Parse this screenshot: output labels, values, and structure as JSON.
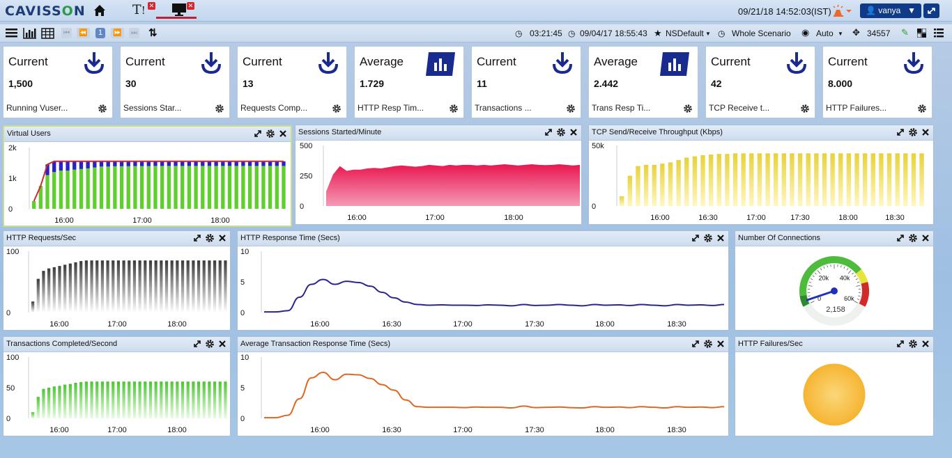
{
  "app": {
    "logo_a": "CAVISS",
    "logo_o": "O",
    "logo_b": "N",
    "tab_text": "T"
  },
  "header": {
    "datetime": "09/21/18 14:52:03(IST)",
    "user": "vanya"
  },
  "toolbar": {
    "page": "1",
    "elapsed": "03:21:45",
    "start": "09/04/17 18:55:43",
    "profile": "NSDefault",
    "scenario": "Whole Scenario",
    "refresh": "Auto",
    "test_run": "34557"
  },
  "cards": [
    {
      "title": "Current",
      "value": "1,500",
      "label": "Running Vuser...",
      "icon": "download-icon"
    },
    {
      "title": "Current",
      "value": "30",
      "label": "Sessions Star...",
      "icon": "download-icon"
    },
    {
      "title": "Current",
      "value": "13",
      "label": "Requests Comp...",
      "icon": "download-icon"
    },
    {
      "title": "Average",
      "value": "1.729",
      "label": "HTTP Resp Tim...",
      "icon": "bar-chart-icon"
    },
    {
      "title": "Current",
      "value": "11",
      "label": "Transactions ...",
      "icon": "download-icon"
    },
    {
      "title": "Average",
      "value": "2.442",
      "label": "Trans Resp Ti...",
      "icon": "bar-chart-icon"
    },
    {
      "title": "Current",
      "value": "42",
      "label": "TCP Receive t...",
      "icon": "download-icon"
    },
    {
      "title": "Current",
      "value": "8.000",
      "label": "HTTP Failures...",
      "icon": "download-icon"
    }
  ],
  "panels": {
    "vusers": {
      "title": "Virtual Users"
    },
    "sessions": {
      "title": "Sessions Started/Minute"
    },
    "tcp": {
      "title": "TCP Send/Receive Throughput (Kbps)"
    },
    "httpreq": {
      "title": "HTTP Requests/Sec"
    },
    "httpresp": {
      "title": "HTTP Response Time (Secs)"
    },
    "conn": {
      "title": "Number Of Connections"
    },
    "trans": {
      "title": "Transactions Completed/Second"
    },
    "avgtrans": {
      "title": "Average Transaction Response Time (Secs)"
    },
    "failures": {
      "title": "HTTP Failures/Sec"
    }
  },
  "chart_data": [
    {
      "id": "vusers",
      "type": "bar",
      "yticks": [
        "2k",
        "1k",
        "0"
      ],
      "xticks": [
        "16:00",
        "17:00",
        "18:00"
      ],
      "ylim": [
        0,
        2000
      ],
      "series": [
        {
          "name": "green",
          "values": [
            250,
            750,
            1100,
            1200,
            1250,
            1250,
            1280,
            1300,
            1320,
            1350,
            1380,
            1380,
            1390,
            1390,
            1390,
            1395,
            1395,
            1395,
            1400,
            1400,
            1400,
            1400,
            1400,
            1400,
            1400,
            1400,
            1400,
            1400,
            1400,
            1400,
            1400,
            1400,
            1400,
            1400,
            1400,
            1400,
            1400,
            1400
          ]
        },
        {
          "name": "blue",
          "values": [
            0,
            0,
            350,
            350,
            300,
            300,
            270,
            250,
            230,
            200,
            170,
            170,
            160,
            160,
            160,
            155,
            155,
            155,
            150,
            150,
            150,
            150,
            150,
            150,
            150,
            150,
            150,
            150,
            150,
            150,
            150,
            150,
            150,
            150,
            150,
            150,
            150,
            150
          ]
        }
      ],
      "colors": {
        "green": "#5fcf2e",
        "blue": "#2a22c9",
        "line": "#d42535"
      }
    },
    {
      "id": "sessions",
      "type": "area",
      "yticks": [
        "500",
        "250",
        "0"
      ],
      "xticks": [
        "16:00",
        "17:00",
        "18:00"
      ],
      "ylim": [
        0,
        500
      ],
      "values": [
        120,
        260,
        330,
        290,
        300,
        300,
        310,
        315,
        310,
        320,
        330,
        335,
        330,
        325,
        330,
        340,
        335,
        330,
        340,
        335,
        340,
        340,
        335,
        340,
        335,
        340,
        345,
        340,
        335,
        340,
        345,
        340,
        338,
        340,
        345,
        340,
        335,
        340
      ],
      "color": "#e8174f"
    },
    {
      "id": "tcp",
      "type": "bar",
      "yticks": [
        "50k",
        "0"
      ],
      "xticks": [
        "16:00",
        "16:30",
        "17:00",
        "17:30",
        "18:00",
        "18:30"
      ],
      "ylim": [
        0,
        50000
      ],
      "values": [
        8000,
        25000,
        33000,
        34000,
        34000,
        35000,
        36000,
        38000,
        40000,
        41000,
        42000,
        42500,
        43000,
        43000,
        43500,
        43500,
        43500,
        43500,
        43500,
        43500,
        43500,
        43500,
        43500,
        43500,
        43500,
        43500,
        43500,
        43500,
        43500,
        43500,
        43500,
        43500,
        43500,
        43500,
        43500,
        43500,
        43500,
        43500
      ],
      "color": "#e8d23a"
    },
    {
      "id": "httpreq",
      "type": "bar",
      "yticks": [
        "100",
        "0"
      ],
      "xticks": [
        "16:00",
        "17:00",
        "18:00"
      ],
      "ylim": [
        0,
        100
      ],
      "values": [
        18,
        55,
        68,
        72,
        74,
        76,
        78,
        80,
        82,
        84,
        85,
        85,
        85,
        85,
        85,
        85,
        85,
        85,
        85,
        85,
        85,
        85,
        85,
        85,
        85,
        85,
        85,
        85,
        85,
        85,
        85,
        85,
        85,
        85,
        85,
        85,
        85
      ],
      "color": "#3a3a3a"
    },
    {
      "id": "httpresp",
      "type": "line",
      "yticks": [
        "10",
        "5",
        "0"
      ],
      "xticks": [
        "16:00",
        "16:30",
        "17:00",
        "17:30",
        "18:00",
        "18:30"
      ],
      "ylim": [
        0,
        10
      ],
      "values": [
        0.1,
        0.1,
        0.3,
        2.5,
        4.6,
        5.4,
        4.6,
        5.1,
        4.9,
        4.3,
        3.3,
        2.4,
        1.7,
        1.3,
        1.2,
        1.25,
        1.2,
        1.2,
        1.15,
        1.25,
        1.2,
        1.1,
        1.3,
        1.15,
        1.2,
        1.3,
        1.2,
        1.1,
        1.3,
        1.2,
        1.25,
        1.15,
        1.3,
        1.2,
        1.1,
        1.3,
        1.2,
        1.25,
        1.15,
        1.3
      ],
      "color": "#2a2490"
    },
    {
      "id": "conn",
      "type": "gauge",
      "value": 2158,
      "value_label": "2,158",
      "max": 60000,
      "ticks": [
        "0",
        "20k",
        "40k",
        "60k"
      ]
    },
    {
      "id": "trans",
      "type": "bar",
      "yticks": [
        "100",
        "50",
        "0"
      ],
      "xticks": [
        "16:00",
        "17:00",
        "18:00"
      ],
      "ylim": [
        0,
        100
      ],
      "values": [
        10,
        35,
        48,
        50,
        52,
        53,
        55,
        56,
        58,
        59,
        60,
        60,
        60,
        60,
        60,
        60,
        60,
        60,
        60,
        60,
        60,
        60,
        60,
        60,
        60,
        60,
        60,
        60,
        60,
        60,
        60,
        60,
        60,
        60,
        60,
        60,
        60
      ],
      "color": "#4cc632"
    },
    {
      "id": "avgtrans",
      "type": "line",
      "yticks": [
        "10",
        "5",
        "0"
      ],
      "xticks": [
        "16:00",
        "16:30",
        "17:00",
        "17:30",
        "18:00",
        "18:30"
      ],
      "ylim": [
        0,
        10
      ],
      "values": [
        0.1,
        0.1,
        0.5,
        3.2,
        6.6,
        7.5,
        6.3,
        7.2,
        7.1,
        6.5,
        5.5,
        4.6,
        3.0,
        1.9,
        1.8,
        1.8,
        1.8,
        1.75,
        1.85,
        1.8,
        1.8,
        1.7,
        2.0,
        1.75,
        1.8,
        1.85,
        1.75,
        1.7,
        1.9,
        1.8,
        1.85,
        1.75,
        1.9,
        1.8,
        1.7,
        1.9,
        1.8,
        1.85,
        1.75,
        1.9
      ],
      "color": "#e0661f"
    },
    {
      "id": "failures",
      "type": "pie",
      "values": [
        100
      ],
      "color": "#f6b430"
    }
  ]
}
